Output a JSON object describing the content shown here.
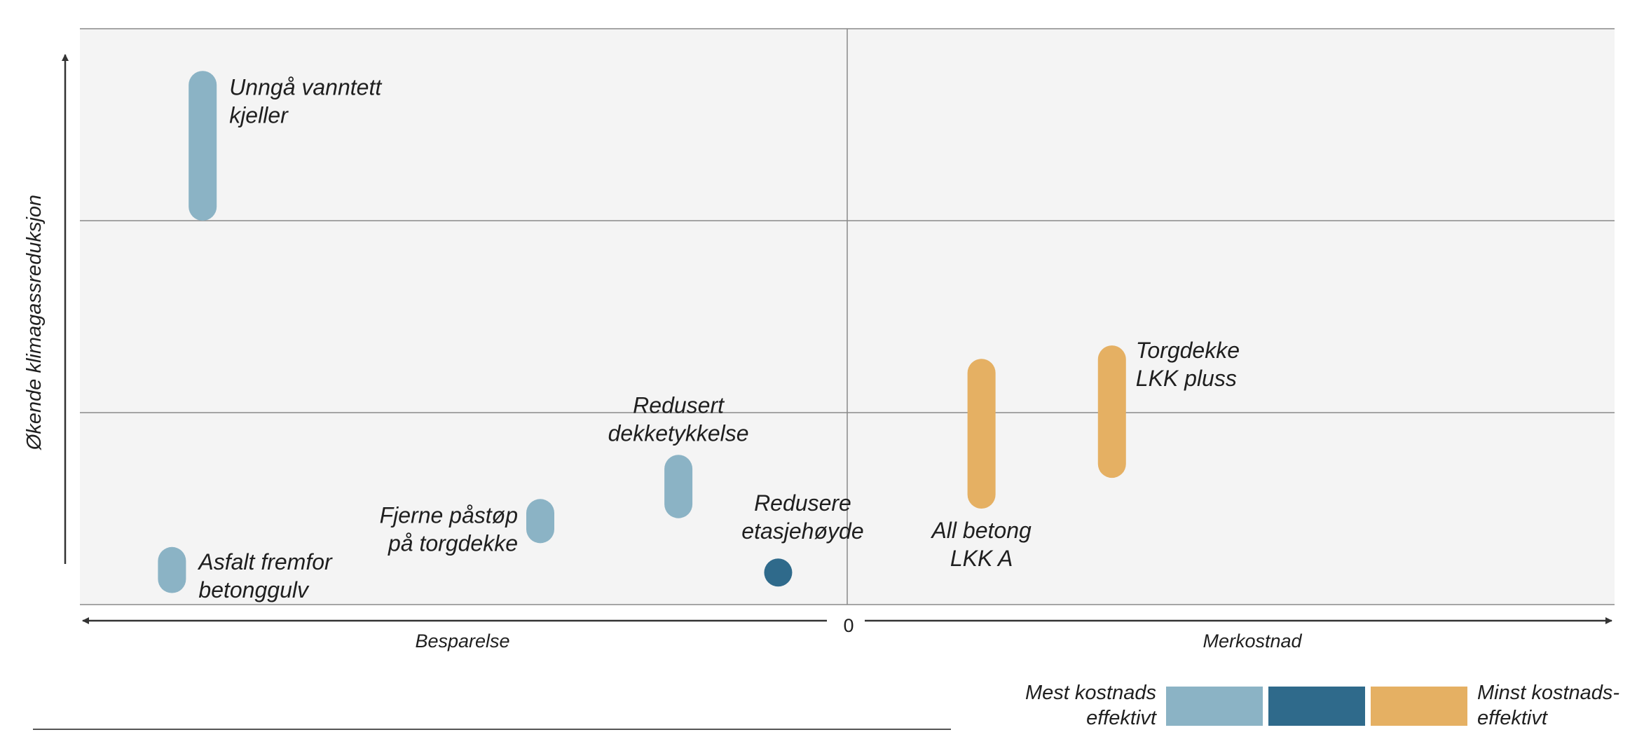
{
  "chart_data": {
    "type": "range",
    "xlabel_left": "Besparelse",
    "xlabel_right": "Merkostnad",
    "x_zero_label": "0",
    "ylabel": "Økende klimagassreduksjon",
    "grid": true,
    "xlim": [
      -1,
      1
    ],
    "ylim": [
      0,
      3
    ],
    "measures": [
      {
        "label": [
          "Unngå vanntett",
          "kjeller"
        ],
        "x": -0.84,
        "y_low": 2.0,
        "y_high": 2.78,
        "group": "light"
      },
      {
        "label": [
          "Asfalt fremfor",
          "betonggulv"
        ],
        "x": -0.88,
        "y_low": 0.06,
        "y_high": 0.3,
        "group": "light"
      },
      {
        "label": [
          "Fjerne påstøp",
          "på torgdekke"
        ],
        "x": -0.4,
        "y_low": 0.32,
        "y_high": 0.55,
        "group": "light"
      },
      {
        "label": [
          "Redusert",
          "dekketykkelse"
        ],
        "x": -0.22,
        "y_low": 0.45,
        "y_high": 0.78,
        "group": "light"
      },
      {
        "label": [
          "Redusere",
          "etasjehøyde"
        ],
        "x": -0.09,
        "y_low": 0.17,
        "y_high": 0.24,
        "group": "dark"
      },
      {
        "label": [
          "All betong",
          "LKK A"
        ],
        "x": 0.175,
        "y_low": 0.5,
        "y_high": 1.28,
        "group": "orange"
      },
      {
        "label": [
          "Torgdekke",
          "LKK pluss"
        ],
        "x": 0.345,
        "y_low": 0.66,
        "y_high": 1.35,
        "group": "orange"
      }
    ],
    "colors": {
      "light": "#8bb3c5",
      "dark": "#2f6a8b",
      "orange": "#e5b063",
      "plot_bg": "#f4f4f4",
      "grid": "#8a8a8a",
      "axis": "#333333"
    },
    "legend": {
      "left_label": [
        "Mest kostnads",
        "effektivt"
      ],
      "right_label": [
        "Minst kostnads-",
        "effektivt"
      ],
      "swatches": [
        "light",
        "dark",
        "orange"
      ],
      "placement": "bottom-right"
    }
  }
}
